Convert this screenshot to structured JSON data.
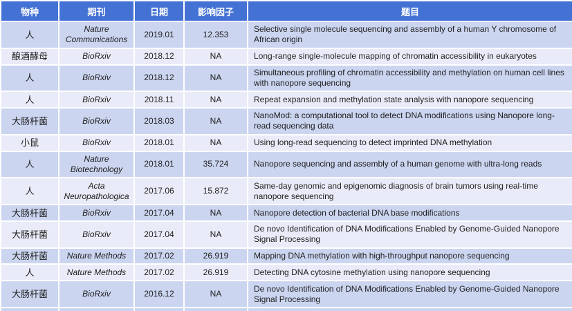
{
  "colors": {
    "header_bg": "#4472D4",
    "band_dark": "#CBD5F0",
    "band_light": "#E9EBF8",
    "text": "#212121",
    "header_text": "#FFFFFF"
  },
  "table": {
    "headers": [
      "物种",
      "期刊",
      "日期",
      "影响因子",
      "题目"
    ],
    "rows": [
      {
        "species": "人",
        "journal": "Nature Communications",
        "date": "2019.01",
        "impact_factor": "12.353",
        "title": "Selective single molecule sequencing and assembly of a human Y chromosome of African origin"
      },
      {
        "species": "酿酒酵母",
        "journal": "BioRxiv",
        "date": "2018.12",
        "impact_factor": "NA",
        "title": "Long-range single-molecule mapping of chromatin accessibility in eukaryotes"
      },
      {
        "species": "人",
        "journal": "BioRxiv",
        "date": "2018.12",
        "impact_factor": "NA",
        "title": "Simultaneous profiling of chromatin accessibility and methylation on human cell lines with nanopore sequencing"
      },
      {
        "species": "人",
        "journal": "BioRxiv",
        "date": "2018.11",
        "impact_factor": "NA",
        "title": "Repeat expansion and methylation state analysis with nanopore sequencing"
      },
      {
        "species": "大肠杆菌",
        "journal": "BioRxiv",
        "date": "2018.03",
        "impact_factor": "NA",
        "title": "NanoMod: a computational tool to detect DNA modifications using Nanopore long-read sequencing data"
      },
      {
        "species": "小鼠",
        "journal": "BioRxiv",
        "date": "2018.01",
        "impact_factor": "NA",
        "title": "Using long-read sequencing to detect imprinted DNA methylation"
      },
      {
        "species": "人",
        "journal": "Nature Biotechnology",
        "date": "2018.01",
        "impact_factor": "35.724",
        "title": "Nanopore sequencing and assembly of a human genome with ultra-long reads"
      },
      {
        "species": "人",
        "journal": "Acta Neuropathologica",
        "date": "2017.06",
        "impact_factor": "15.872",
        "title": "Same-day genomic and epigenomic diagnosis of brain tumors using real-time nanopore sequencing"
      },
      {
        "species": "大肠杆菌",
        "journal": "BioRxiv",
        "date": "2017.04",
        "impact_factor": "NA",
        "title": "Nanopore detection of bacterial DNA base modifications"
      },
      {
        "species": "大肠杆菌",
        "journal": "BioRxiv",
        "date": "2017.04",
        "impact_factor": "NA",
        "title": "De novo Identification of DNA Modifications Enabled by Genome-Guided Nanopore Signal Processing"
      },
      {
        "species": "大肠杆菌",
        "journal": "Nature Methods",
        "date": "2017.02",
        "impact_factor": "26.919",
        "title": "Mapping DNA methylation with high-throughput nanopore sequencing"
      },
      {
        "species": "人",
        "journal": "Nature Methods",
        "date": "2017.02",
        "impact_factor": "26.919",
        "title": "Detecting DNA cytosine methylation using nanopore sequencing"
      },
      {
        "species": "大肠杆菌",
        "journal": "BioRxiv",
        "date": "2016.12",
        "impact_factor": "NA",
        "title": "De novo Identification of DNA Modifications Enabled by Genome-Guided Nanopore Signal Processing"
      }
    ]
  }
}
